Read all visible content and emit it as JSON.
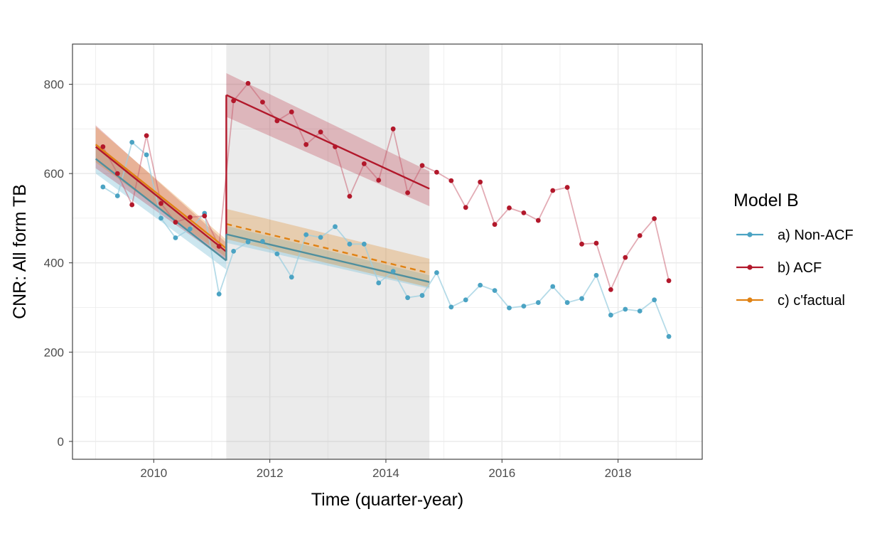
{
  "chart_data": {
    "type": "line",
    "xlabel": "Time (quarter-year)",
    "ylabel": "CNR: All form TB",
    "xlim": [
      2008.6,
      2019.45
    ],
    "ylim": [
      -40,
      890
    ],
    "x_ticks": [
      2010,
      2012,
      2014,
      2016,
      2018
    ],
    "y_ticks": [
      0,
      200,
      400,
      600,
      800
    ],
    "grid": true,
    "legend_title": "Model B",
    "legend_position": "right",
    "shaded_period": [
      2011.25,
      2014.75
    ],
    "series": [
      {
        "name": "a) Non-ACF",
        "color": "#4BA3C3",
        "x": [
          2009.125,
          2009.375,
          2009.625,
          2009.875,
          2010.125,
          2010.375,
          2010.625,
          2010.875,
          2011.125,
          2011.375,
          2011.625,
          2011.875,
          2012.125,
          2012.375,
          2012.625,
          2012.875,
          2013.125,
          2013.375,
          2013.625,
          2013.875,
          2014.125,
          2014.375,
          2014.625,
          2014.875,
          2015.125,
          2015.375,
          2015.625,
          2015.875,
          2016.125,
          2016.375,
          2016.625,
          2016.875,
          2017.125,
          2017.375,
          2017.625,
          2017.875,
          2018.125,
          2018.375,
          2018.625,
          2018.875
        ],
        "y": [
          570,
          550,
          670,
          642,
          500,
          456,
          476,
          511,
          330,
          426,
          447,
          448,
          420,
          368,
          463,
          457,
          481,
          442,
          442,
          355,
          381,
          322,
          327,
          378,
          301,
          317,
          350,
          338,
          299,
          303,
          311,
          347,
          311,
          320,
          372,
          283,
          296,
          292,
          317,
          235
        ]
      },
      {
        "name": "b) ACF",
        "color": "#B2182B",
        "x": [
          2009.125,
          2009.375,
          2009.625,
          2009.875,
          2010.125,
          2010.375,
          2010.625,
          2010.875,
          2011.125,
          2011.375,
          2011.625,
          2011.875,
          2012.125,
          2012.375,
          2012.625,
          2012.875,
          2013.125,
          2013.375,
          2013.625,
          2013.875,
          2014.125,
          2014.375,
          2014.625,
          2014.875,
          2015.125,
          2015.375,
          2015.625,
          2015.875,
          2016.125,
          2016.375,
          2016.625,
          2016.875,
          2017.125,
          2017.375,
          2017.625,
          2017.875,
          2018.125,
          2018.375,
          2018.625,
          2018.875
        ],
        "y": [
          660,
          600,
          530,
          685,
          533,
          491,
          502,
          505,
          437,
          763,
          802,
          760,
          718,
          738,
          665,
          693,
          660,
          549,
          622,
          585,
          700,
          557,
          618,
          603,
          584,
          524,
          581,
          486,
          523,
          512,
          495,
          562,
          569,
          442,
          444,
          340,
          412,
          461,
          499,
          360
        ]
      },
      {
        "name": "c) c'factual",
        "color": "#E08214",
        "dashed_after": 2011.25
      }
    ],
    "fits": [
      {
        "series": "a) Non-ACF",
        "color": "#4E8F9E",
        "segments": [
          {
            "x": [
              2009.0,
              2011.25
            ],
            "y": [
              633,
              405
            ],
            "lower": [
              600,
              385
            ],
            "upper": [
              668,
              425
            ]
          },
          {
            "x": [
              2011.25,
              2014.75
            ],
            "y": [
              464,
              357
            ],
            "lower": [
              445,
              342
            ],
            "upper": [
              483,
              372
            ]
          }
        ]
      },
      {
        "series": "b) ACF",
        "color": "#B2182B",
        "segments": [
          {
            "x": [
              2009.0,
              2011.25
            ],
            "y": [
              660,
              425
            ],
            "lower": [
              612,
              405
            ],
            "upper": [
              708,
              445
            ]
          },
          {
            "x": [
              2011.25,
              2014.75
            ],
            "y": [
              776,
              566
            ],
            "lower": [
              727,
              527
            ],
            "upper": [
              825,
              605
            ]
          }
        ]
      },
      {
        "series": "c) c'factual",
        "color": "#E08214",
        "segments": [
          {
            "x": [
              2009.0,
              2011.25
            ],
            "y": [
              665,
              432
            ],
            "lower": [
              625,
              412
            ],
            "upper": [
              705,
              452
            ],
            "dashed": false
          },
          {
            "x": [
              2011.25,
              2014.75
            ],
            "y": [
              487,
              377
            ],
            "lower": [
              453,
              345
            ],
            "upper": [
              521,
              409
            ],
            "dashed": true
          }
        ]
      }
    ]
  }
}
